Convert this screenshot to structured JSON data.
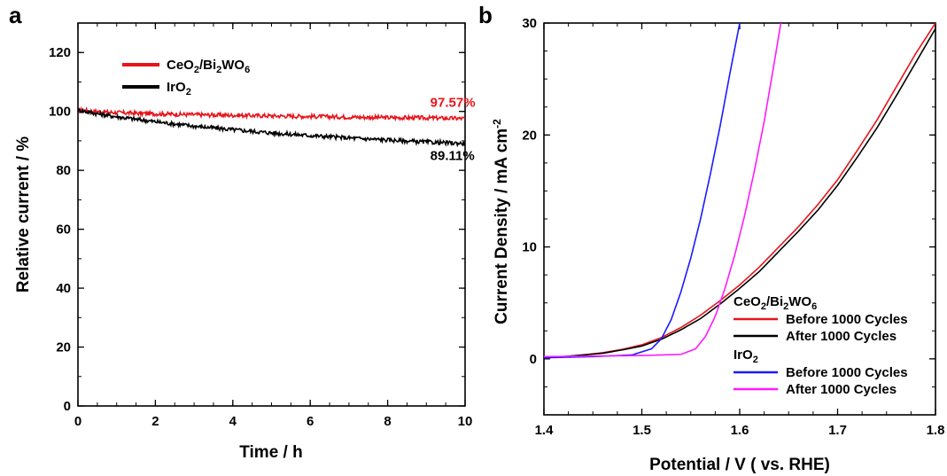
{
  "chart_data": [
    {
      "panel": "a",
      "type": "line",
      "xlabel": "Time / h",
      "ylabel": "Relative current / %",
      "xlim": [
        0,
        10
      ],
      "ylim": [
        0,
        130
      ],
      "xticks": [
        "0",
        "2",
        "4",
        "6",
        "8",
        "10"
      ],
      "yticks": [
        "0",
        "20",
        "40",
        "60",
        "80",
        "100",
        "120"
      ],
      "legend_position": "top-left",
      "series": [
        {
          "name": "CeO2/Bi2WO6",
          "name_parts": [
            [
              "CeO",
              "n"
            ],
            [
              "2",
              "s"
            ],
            [
              "/Bi",
              "n"
            ],
            [
              "2",
              "s"
            ],
            [
              "WO",
              "n"
            ],
            [
              "6",
              "s"
            ]
          ],
          "color": "#e8141b",
          "x": [
            0,
            0.5,
            1,
            2,
            3,
            4,
            5,
            6,
            7,
            8,
            9,
            10
          ],
          "y": [
            100.5,
            100.0,
            99.6,
            99.2,
            98.9,
            98.7,
            98.5,
            98.3,
            98.1,
            97.9,
            97.8,
            97.57
          ]
        },
        {
          "name": "IrO2",
          "name_parts": [
            [
              "IrO",
              "n"
            ],
            [
              "2",
              "s"
            ]
          ],
          "color": "#000000",
          "x": [
            0,
            0.5,
            1,
            2,
            3,
            4,
            5,
            6,
            7,
            8,
            9,
            10
          ],
          "y": [
            100.5,
            99.2,
            98.2,
            96.5,
            95.0,
            93.8,
            92.7,
            91.8,
            91.0,
            90.3,
            89.6,
            89.11
          ]
        }
      ],
      "annotations": [
        {
          "text": "97.57%",
          "x": 9.1,
          "y": 101.5,
          "color": "#e8141b"
        },
        {
          "text": "89.11%",
          "x": 9.1,
          "y": 83.5,
          "color": "#000000"
        }
      ]
    },
    {
      "panel": "b",
      "type": "line",
      "xlabel": "Potential / V ( vs. RHE)",
      "ylabel": "Current Density / mA cm",
      "ylabel_sup": "-2",
      "xlim": [
        1.4,
        1.8
      ],
      "ylim": [
        -5,
        30
      ],
      "xticks": [
        "1.4",
        "1.5",
        "1.6",
        "1.7",
        "1.8"
      ],
      "yticks": [
        "0",
        "10",
        "20",
        "30"
      ],
      "legend_position": "bottom-right",
      "legend_groups": [
        {
          "title_parts": [
            [
              "CeO",
              "n"
            ],
            [
              "2",
              "s"
            ],
            [
              "/Bi",
              "n"
            ],
            [
              "2",
              "s"
            ],
            [
              "WO",
              "n"
            ],
            [
              "6",
              "s"
            ]
          ],
          "entries": [
            0,
            1
          ]
        },
        {
          "title_parts": [
            [
              "IrO",
              "n"
            ],
            [
              "2",
              "s"
            ]
          ],
          "entries": [
            2,
            3
          ]
        }
      ],
      "series": [
        {
          "name": "Before 1000 Cycles",
          "color": "#e8141b",
          "x": [
            1.4,
            1.42,
            1.44,
            1.46,
            1.48,
            1.5,
            1.52,
            1.54,
            1.56,
            1.58,
            1.6,
            1.62,
            1.64,
            1.66,
            1.68,
            1.7,
            1.72,
            1.74,
            1.76,
            1.78,
            1.8
          ],
          "y": [
            0.1,
            0.2,
            0.35,
            0.55,
            0.85,
            1.25,
            1.9,
            2.8,
            3.9,
            5.2,
            6.6,
            8.2,
            10.0,
            11.8,
            13.8,
            16.0,
            18.6,
            21.3,
            24.3,
            27.3,
            30.0
          ]
        },
        {
          "name": "After 1000 Cycles",
          "color": "#000000",
          "x": [
            1.4,
            1.42,
            1.44,
            1.46,
            1.48,
            1.5,
            1.52,
            1.54,
            1.56,
            1.58,
            1.6,
            1.62,
            1.64,
            1.66,
            1.68,
            1.7,
            1.72,
            1.74,
            1.76,
            1.78,
            1.8
          ],
          "y": [
            0.1,
            0.2,
            0.35,
            0.5,
            0.8,
            1.15,
            1.75,
            2.6,
            3.6,
            4.9,
            6.3,
            7.8,
            9.6,
            11.4,
            13.3,
            15.5,
            18.0,
            20.6,
            23.5,
            26.5,
            29.5
          ]
        },
        {
          "name": "Before 1000 Cycles",
          "color": "#1a1aff",
          "x": [
            1.4,
            1.45,
            1.49,
            1.51,
            1.52,
            1.53,
            1.54,
            1.55,
            1.56,
            1.57,
            1.58,
            1.59,
            1.6
          ],
          "y": [
            0.1,
            0.2,
            0.35,
            0.9,
            1.8,
            3.5,
            6.0,
            9.0,
            12.5,
            16.5,
            20.8,
            25.5,
            30.0
          ]
        },
        {
          "name": "After 1000 Cycles",
          "color": "#ff1aff",
          "x": [
            1.4,
            1.5,
            1.54,
            1.555,
            1.565,
            1.575,
            1.585,
            1.595,
            1.605,
            1.615,
            1.625,
            1.635,
            1.642
          ],
          "y": [
            0.2,
            0.3,
            0.4,
            0.9,
            2.0,
            3.8,
            6.3,
            9.3,
            12.8,
            16.8,
            21.2,
            26.3,
            30.0
          ]
        }
      ]
    }
  ]
}
